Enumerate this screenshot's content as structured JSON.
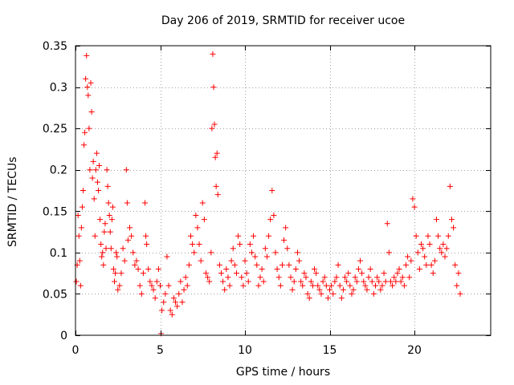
{
  "chart_data": {
    "type": "scatter",
    "title": "Day 206 of 2019, SRMTID for receiver ucoe",
    "xlabel": "GPS time / hours",
    "ylabel": "SRMTID / TECUs",
    "xlim": [
      0,
      24.5
    ],
    "ylim": [
      0,
      0.35
    ],
    "x_ticks": [
      0,
      5,
      10,
      15,
      20
    ],
    "x_tick_labels": [
      "0",
      "5",
      "10",
      "15",
      "20"
    ],
    "y_ticks": [
      0,
      0.05,
      0.1,
      0.15,
      0.2,
      0.25,
      0.3,
      0.35
    ],
    "y_tick_labels": [
      "0",
      "0.05",
      "0.1",
      "0.15",
      "0.2",
      "0.25",
      "0.3",
      "0.35"
    ],
    "grid": true,
    "marker": "+",
    "color": "#ff0000",
    "series": [
      {
        "name": "SRMTID",
        "points": [
          [
            0.05,
            0.065
          ],
          [
            0.1,
            0.085
          ],
          [
            0.15,
            0.145
          ],
          [
            0.2,
            0.12
          ],
          [
            0.25,
            0.09
          ],
          [
            0.3,
            0.06
          ],
          [
            0.35,
            0.13
          ],
          [
            0.4,
            0.155
          ],
          [
            0.45,
            0.175
          ],
          [
            0.5,
            0.23
          ],
          [
            0.55,
            0.245
          ],
          [
            0.6,
            0.31
          ],
          [
            0.65,
            0.338
          ],
          [
            0.7,
            0.3
          ],
          [
            0.75,
            0.29
          ],
          [
            0.8,
            0.25
          ],
          [
            0.85,
            0.2
          ],
          [
            0.9,
            0.305
          ],
          [
            0.95,
            0.27
          ],
          [
            1.0,
            0.19
          ],
          [
            1.05,
            0.21
          ],
          [
            1.1,
            0.165
          ],
          [
            1.15,
            0.12
          ],
          [
            1.2,
            0.2
          ],
          [
            1.25,
            0.22
          ],
          [
            1.3,
            0.185
          ],
          [
            1.35,
            0.175
          ],
          [
            1.4,
            0.205
          ],
          [
            1.45,
            0.14
          ],
          [
            1.5,
            0.11
          ],
          [
            1.55,
            0.095
          ],
          [
            1.6,
            0.1
          ],
          [
            1.65,
            0.085
          ],
          [
            1.7,
            0.125
          ],
          [
            1.75,
            0.135
          ],
          [
            1.8,
            0.105
          ],
          [
            1.85,
            0.2
          ],
          [
            1.9,
            0.18
          ],
          [
            1.95,
            0.16
          ],
          [
            2.0,
            0.145
          ],
          [
            2.05,
            0.125
          ],
          [
            2.1,
            0.105
          ],
          [
            2.15,
            0.14
          ],
          [
            2.2,
            0.155
          ],
          [
            2.25,
            0.08
          ],
          [
            2.3,
            0.065
          ],
          [
            2.35,
            0.075
          ],
          [
            2.4,
            0.1
          ],
          [
            2.45,
            0.095
          ],
          [
            2.5,
            0.055
          ],
          [
            2.6,
            0.06
          ],
          [
            2.7,
            0.075
          ],
          [
            2.8,
            0.105
          ],
          [
            2.9,
            0.09
          ],
          [
            3.0,
            0.2
          ],
          [
            3.05,
            0.16
          ],
          [
            3.1,
            0.115
          ],
          [
            3.2,
            0.13
          ],
          [
            3.3,
            0.12
          ],
          [
            3.4,
            0.1
          ],
          [
            3.5,
            0.085
          ],
          [
            3.6,
            0.09
          ],
          [
            3.7,
            0.08
          ],
          [
            3.8,
            0.06
          ],
          [
            3.9,
            0.05
          ],
          [
            4.0,
            0.075
          ],
          [
            4.1,
            0.16
          ],
          [
            4.15,
            0.12
          ],
          [
            4.2,
            0.11
          ],
          [
            4.3,
            0.08
          ],
          [
            4.4,
            0.065
          ],
          [
            4.5,
            0.06
          ],
          [
            4.6,
            0.055
          ],
          [
            4.7,
            0.045
          ],
          [
            4.8,
            0.065
          ],
          [
            4.9,
            0.08
          ],
          [
            5.0,
            0.06
          ],
          [
            5.05,
            0.002
          ],
          [
            5.1,
            0.03
          ],
          [
            5.2,
            0.04
          ],
          [
            5.3,
            0.05
          ],
          [
            5.4,
            0.095
          ],
          [
            5.5,
            0.06
          ],
          [
            5.6,
            0.03
          ],
          [
            5.7,
            0.025
          ],
          [
            5.8,
            0.045
          ],
          [
            5.9,
            0.04
          ],
          [
            6.0,
            0.035
          ],
          [
            6.1,
            0.05
          ],
          [
            6.2,
            0.065
          ],
          [
            6.3,
            0.04
          ],
          [
            6.4,
            0.055
          ],
          [
            6.5,
            0.07
          ],
          [
            6.6,
            0.06
          ],
          [
            6.7,
            0.085
          ],
          [
            6.8,
            0.12
          ],
          [
            6.9,
            0.11
          ],
          [
            7.0,
            0.1
          ],
          [
            7.1,
            0.145
          ],
          [
            7.2,
            0.13
          ],
          [
            7.3,
            0.11
          ],
          [
            7.4,
            0.09
          ],
          [
            7.5,
            0.16
          ],
          [
            7.6,
            0.14
          ],
          [
            7.7,
            0.075
          ],
          [
            7.8,
            0.07
          ],
          [
            7.9,
            0.065
          ],
          [
            8.0,
            0.1
          ],
          [
            8.05,
            0.25
          ],
          [
            8.1,
            0.34
          ],
          [
            8.15,
            0.3
          ],
          [
            8.2,
            0.255
          ],
          [
            8.25,
            0.215
          ],
          [
            8.3,
            0.18
          ],
          [
            8.35,
            0.22
          ],
          [
            8.4,
            0.17
          ],
          [
            8.5,
            0.085
          ],
          [
            8.6,
            0.075
          ],
          [
            8.7,
            0.065
          ],
          [
            8.8,
            0.055
          ],
          [
            8.9,
            0.08
          ],
          [
            9.0,
            0.07
          ],
          [
            9.1,
            0.06
          ],
          [
            9.2,
            0.09
          ],
          [
            9.3,
            0.105
          ],
          [
            9.4,
            0.085
          ],
          [
            9.5,
            0.075
          ],
          [
            9.6,
            0.12
          ],
          [
            9.7,
            0.11
          ],
          [
            9.8,
            0.07
          ],
          [
            9.9,
            0.06
          ],
          [
            10.0,
            0.09
          ],
          [
            10.1,
            0.075
          ],
          [
            10.2,
            0.065
          ],
          [
            10.3,
            0.11
          ],
          [
            10.4,
            0.1
          ],
          [
            10.5,
            0.12
          ],
          [
            10.6,
            0.095
          ],
          [
            10.7,
            0.085
          ],
          [
            10.8,
            0.06
          ],
          [
            10.9,
            0.07
          ],
          [
            11.0,
            0.08
          ],
          [
            11.1,
            0.065
          ],
          [
            11.2,
            0.105
          ],
          [
            11.3,
            0.095
          ],
          [
            11.4,
            0.12
          ],
          [
            11.5,
            0.14
          ],
          [
            11.6,
            0.175
          ],
          [
            11.7,
            0.145
          ],
          [
            11.8,
            0.1
          ],
          [
            11.9,
            0.08
          ],
          [
            12.0,
            0.07
          ],
          [
            12.1,
            0.06
          ],
          [
            12.2,
            0.085
          ],
          [
            12.3,
            0.115
          ],
          [
            12.4,
            0.13
          ],
          [
            12.5,
            0.105
          ],
          [
            12.6,
            0.085
          ],
          [
            12.7,
            0.07
          ],
          [
            12.8,
            0.055
          ],
          [
            12.9,
            0.065
          ],
          [
            13.0,
            0.08
          ],
          [
            13.1,
            0.1
          ],
          [
            13.2,
            0.09
          ],
          [
            13.3,
            0.065
          ],
          [
            13.4,
            0.06
          ],
          [
            13.5,
            0.075
          ],
          [
            13.6,
            0.07
          ],
          [
            13.7,
            0.05
          ],
          [
            13.8,
            0.045
          ],
          [
            13.9,
            0.065
          ],
          [
            14.0,
            0.06
          ],
          [
            14.1,
            0.08
          ],
          [
            14.2,
            0.075
          ],
          [
            14.3,
            0.06
          ],
          [
            14.4,
            0.055
          ],
          [
            14.5,
            0.05
          ],
          [
            14.6,
            0.065
          ],
          [
            14.7,
            0.07
          ],
          [
            14.8,
            0.06
          ],
          [
            14.9,
            0.045
          ],
          [
            15.0,
            0.055
          ],
          [
            15.1,
            0.06
          ],
          [
            15.2,
            0.05
          ],
          [
            15.3,
            0.065
          ],
          [
            15.4,
            0.07
          ],
          [
            15.5,
            0.085
          ],
          [
            15.6,
            0.06
          ],
          [
            15.7,
            0.045
          ],
          [
            15.8,
            0.055
          ],
          [
            15.9,
            0.07
          ],
          [
            16.0,
            0.065
          ],
          [
            16.1,
            0.075
          ],
          [
            16.2,
            0.06
          ],
          [
            16.3,
            0.05
          ],
          [
            16.4,
            0.055
          ],
          [
            16.5,
            0.07
          ],
          [
            16.6,
            0.065
          ],
          [
            16.7,
            0.08
          ],
          [
            16.8,
            0.09
          ],
          [
            16.9,
            0.075
          ],
          [
            17.0,
            0.065
          ],
          [
            17.1,
            0.06
          ],
          [
            17.2,
            0.055
          ],
          [
            17.3,
            0.07
          ],
          [
            17.4,
            0.08
          ],
          [
            17.5,
            0.065
          ],
          [
            17.6,
            0.05
          ],
          [
            17.7,
            0.06
          ],
          [
            17.8,
            0.07
          ],
          [
            17.9,
            0.065
          ],
          [
            18.0,
            0.055
          ],
          [
            18.1,
            0.06
          ],
          [
            18.2,
            0.075
          ],
          [
            18.3,
            0.065
          ],
          [
            18.4,
            0.135
          ],
          [
            18.5,
            0.1
          ],
          [
            18.6,
            0.065
          ],
          [
            18.7,
            0.06
          ],
          [
            18.8,
            0.07
          ],
          [
            18.9,
            0.065
          ],
          [
            19.0,
            0.075
          ],
          [
            19.1,
            0.08
          ],
          [
            19.2,
            0.065
          ],
          [
            19.3,
            0.07
          ],
          [
            19.4,
            0.06
          ],
          [
            19.5,
            0.085
          ],
          [
            19.6,
            0.095
          ],
          [
            19.7,
            0.07
          ],
          [
            19.8,
            0.09
          ],
          [
            19.9,
            0.165
          ],
          [
            20.0,
            0.155
          ],
          [
            20.1,
            0.12
          ],
          [
            20.2,
            0.1
          ],
          [
            20.3,
            0.08
          ],
          [
            20.4,
            0.11
          ],
          [
            20.5,
            0.105
          ],
          [
            20.6,
            0.095
          ],
          [
            20.7,
            0.085
          ],
          [
            20.8,
            0.12
          ],
          [
            20.9,
            0.11
          ],
          [
            21.0,
            0.085
          ],
          [
            21.1,
            0.075
          ],
          [
            21.2,
            0.09
          ],
          [
            21.3,
            0.14
          ],
          [
            21.4,
            0.12
          ],
          [
            21.5,
            0.105
          ],
          [
            21.6,
            0.1
          ],
          [
            21.7,
            0.11
          ],
          [
            21.8,
            0.095
          ],
          [
            21.9,
            0.105
          ],
          [
            22.0,
            0.12
          ],
          [
            22.1,
            0.18
          ],
          [
            22.2,
            0.14
          ],
          [
            22.3,
            0.13
          ],
          [
            22.4,
            0.085
          ],
          [
            22.5,
            0.06
          ],
          [
            22.6,
            0.075
          ],
          [
            22.7,
            0.05
          ]
        ]
      }
    ]
  }
}
